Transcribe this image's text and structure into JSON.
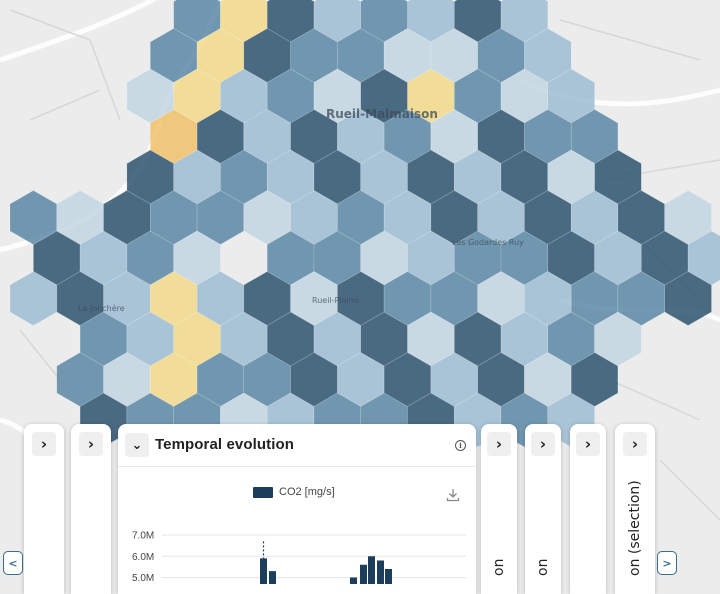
{
  "map": {
    "labels": {
      "city": "Rueil-Malmaison",
      "district_a": "La Jonchère",
      "district_b": "Les Godardes Ruy",
      "district_c": "Rueil-Plaine"
    }
  },
  "colors": {
    "hex_dark": "#2e5470",
    "hex_mid": "#5b87a6",
    "hex_light": "#9dbcd4",
    "hex_pale": "#c3d6e2",
    "hex_yellow": "#f2da8a",
    "hex_orange": "#f0c26b",
    "hex_red": "#e06a4e",
    "accent": "#3b6d8f",
    "series": "#1d3e5a"
  },
  "panels": {
    "collapsed": [
      {
        "expand_icon": "chevron-right-icon"
      },
      {
        "expand_icon": "chevron-right-icon"
      },
      {
        "expand_icon": "chevron-right-icon",
        "title": "on"
      },
      {
        "expand_icon": "chevron-right-icon",
        "title": "on"
      },
      {
        "expand_icon": "chevron-right-icon"
      },
      {
        "expand_icon": "chevron-right-icon",
        "title": "on (selection)"
      }
    ],
    "main": {
      "title": "Temporal evolution",
      "collapse_icon": "chevron-down-icon",
      "info_icon": "info-icon",
      "download_icon": "download-icon"
    }
  },
  "nav": {
    "prev_label": "<",
    "next_label": ">"
  },
  "chart_data": {
    "type": "bar",
    "series": [
      {
        "name": "CO2 [mg/s]",
        "values": [
          5.9,
          5.3,
          5.0,
          5.6,
          6.0,
          5.8,
          5.4
        ]
      }
    ],
    "ylabels": [
      "7.0M",
      "6.0M",
      "5.0M"
    ],
    "ylim": [
      4.6,
      7.0
    ],
    "grid": true,
    "legend": "top-center"
  }
}
